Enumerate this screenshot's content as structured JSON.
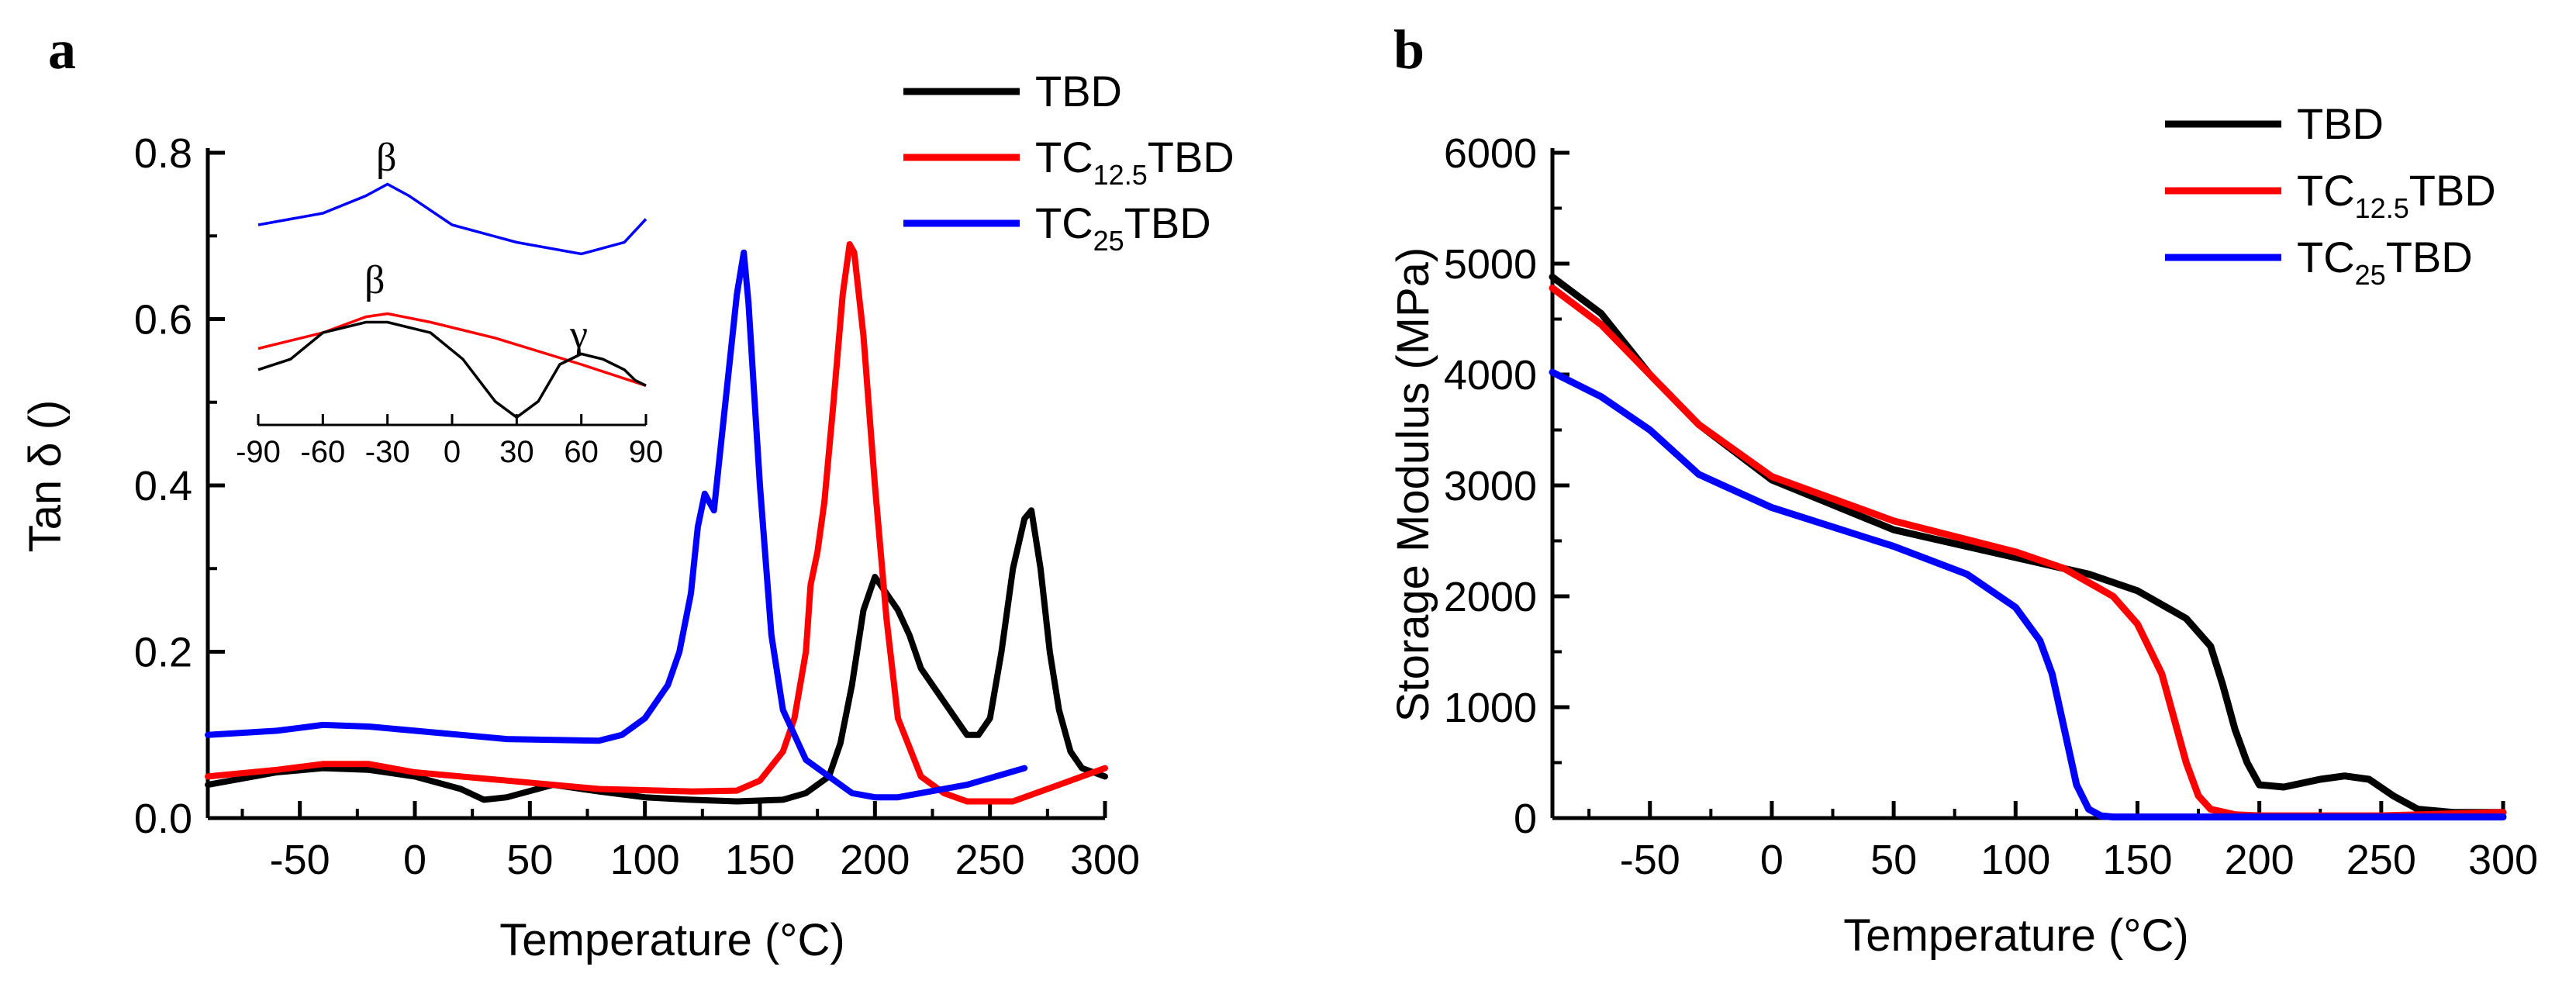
{
  "colors": {
    "TBD": "#000000",
    "TC12.5TBD": "#ff0000",
    "TC25TBD": "#0000ff"
  },
  "chart_data": [
    {
      "panel": "a",
      "type": "line",
      "xlabel": "Temperature (°C)",
      "ylabel": "Tan δ ()",
      "xlim": [
        -90,
        300
      ],
      "ylim": [
        0.0,
        0.8
      ],
      "xticks": [
        "-50",
        "0",
        "50",
        "100",
        "150",
        "200",
        "250",
        "300"
      ],
      "yticks": [
        "0.0",
        "0.2",
        "0.4",
        "0.6",
        "0.8"
      ],
      "legend": [
        {
          "main": "TBD",
          "sub": "",
          "tail": "",
          "color": "#000000"
        },
        {
          "main": "TC",
          "sub": "12.5",
          "tail": "TBD",
          "color": "#ff0000"
        },
        {
          "main": "TC",
          "sub": "25",
          "tail": "TBD",
          "color": "#0000ff"
        }
      ],
      "series": [
        {
          "name": "TBD",
          "color": "#000000",
          "x": [
            -90,
            -60,
            -40,
            -20,
            0,
            20,
            30,
            40,
            60,
            80,
            100,
            120,
            140,
            160,
            170,
            180,
            185,
            190,
            195,
            200,
            205,
            210,
            215,
            220,
            230,
            240,
            245,
            250,
            255,
            260,
            265,
            268,
            272,
            276,
            280,
            285,
            290,
            300
          ],
          "y": [
            0.04,
            0.055,
            0.06,
            0.058,
            0.05,
            0.035,
            0.022,
            0.025,
            0.04,
            0.032,
            0.025,
            0.022,
            0.02,
            0.022,
            0.03,
            0.05,
            0.09,
            0.16,
            0.25,
            0.29,
            0.27,
            0.25,
            0.22,
            0.18,
            0.14,
            0.1,
            0.1,
            0.12,
            0.2,
            0.3,
            0.36,
            0.37,
            0.3,
            0.2,
            0.13,
            0.08,
            0.06,
            0.05
          ]
        },
        {
          "name": "TC12.5TBD",
          "color": "#ff0000",
          "x": [
            -90,
            -60,
            -40,
            -20,
            0,
            40,
            80,
            120,
            140,
            150,
            160,
            165,
            170,
            172,
            175,
            178,
            182,
            186,
            189,
            191,
            195,
            200,
            205,
            210,
            220,
            230,
            240,
            250,
            260,
            280,
            300
          ],
          "y": [
            0.05,
            0.058,
            0.065,
            0.065,
            0.055,
            0.045,
            0.035,
            0.032,
            0.033,
            0.045,
            0.08,
            0.12,
            0.2,
            0.28,
            0.32,
            0.38,
            0.5,
            0.63,
            0.69,
            0.68,
            0.58,
            0.4,
            0.24,
            0.12,
            0.05,
            0.03,
            0.02,
            0.02,
            0.02,
            0.04,
            0.06
          ]
        },
        {
          "name": "TC25TBD",
          "color": "#0000ff",
          "x": [
            -90,
            -60,
            -40,
            -20,
            0,
            40,
            80,
            90,
            100,
            110,
            115,
            120,
            123,
            126,
            128,
            130,
            135,
            140,
            143,
            145,
            150,
            155,
            160,
            170,
            180,
            190,
            200,
            210,
            220,
            240,
            265
          ],
          "y": [
            0.1,
            0.105,
            0.112,
            0.11,
            0.105,
            0.095,
            0.093,
            0.1,
            0.12,
            0.16,
            0.2,
            0.27,
            0.35,
            0.39,
            0.38,
            0.37,
            0.5,
            0.63,
            0.68,
            0.62,
            0.4,
            0.22,
            0.13,
            0.07,
            0.05,
            0.03,
            0.025,
            0.025,
            0.03,
            0.04,
            0.06
          ]
        }
      ],
      "inset": {
        "xlim": [
          -90,
          90
        ],
        "xticks": [
          "-90",
          "-60",
          "-30",
          "0",
          "30",
          "60",
          "90"
        ],
        "annotations": [
          "β",
          "β",
          "γ"
        ],
        "upper_series": {
          "name": "TC25TBD",
          "color": "#0000ff",
          "x": [
            -90,
            -60,
            -40,
            -30,
            -20,
            0,
            30,
            60,
            80,
            90
          ],
          "y": [
            0.1,
            0.11,
            0.125,
            0.135,
            0.125,
            0.1,
            0.085,
            0.075,
            0.085,
            0.105
          ]
        },
        "lower_series": [
          {
            "name": "TC12.5TBD",
            "color": "#ff0000",
            "x": [
              -90,
              -60,
              -40,
              -30,
              -10,
              20,
              60,
              90
            ],
            "y": [
              0.07,
              0.085,
              0.1,
              0.103,
              0.095,
              0.08,
              0.055,
              0.035
            ]
          },
          {
            "name": "TBD",
            "color": "#000000",
            "x": [
              -90,
              -75,
              -60,
              -40,
              -30,
              -10,
              5,
              20,
              30,
              40,
              50,
              60,
              70,
              80,
              85,
              90
            ],
            "y": [
              0.05,
              0.06,
              0.085,
              0.095,
              0.095,
              0.085,
              0.06,
              0.02,
              0.005,
              0.02,
              0.055,
              0.065,
              0.06,
              0.05,
              0.04,
              0.035
            ]
          }
        ]
      }
    },
    {
      "panel": "b",
      "type": "line",
      "xlabel": "Temperature (°C)",
      "ylabel": "Storage Modulus (MPa)",
      "xlim": [
        -90,
        300
      ],
      "ylim": [
        0,
        6000
      ],
      "xticks": [
        "-50",
        "0",
        "50",
        "100",
        "150",
        "200",
        "250",
        "300"
      ],
      "yticks": [
        "0",
        "1000",
        "2000",
        "3000",
        "4000",
        "5000",
        "6000"
      ],
      "legend": [
        {
          "main": "TBD",
          "sub": "",
          "tail": "",
          "color": "#000000"
        },
        {
          "main": "TC",
          "sub": "12.5",
          "tail": "TBD",
          "color": "#ff0000"
        },
        {
          "main": "TC",
          "sub": "25",
          "tail": "TBD",
          "color": "#0000ff"
        }
      ],
      "series": [
        {
          "name": "TBD",
          "color": "#000000",
          "x": [
            -90,
            -70,
            -50,
            -30,
            0,
            50,
            100,
            130,
            150,
            170,
            180,
            185,
            190,
            195,
            200,
            210,
            225,
            235,
            245,
            255,
            265,
            280,
            300
          ],
          "y": [
            4880,
            4550,
            4000,
            3550,
            3050,
            2600,
            2350,
            2200,
            2050,
            1800,
            1550,
            1200,
            800,
            500,
            300,
            280,
            350,
            380,
            350,
            200,
            80,
            50,
            50
          ]
        },
        {
          "name": "TC12.5TBD",
          "color": "#ff0000",
          "x": [
            -90,
            -70,
            -50,
            -30,
            0,
            50,
            100,
            120,
            140,
            150,
            160,
            165,
            170,
            175,
            180,
            190,
            200,
            250,
            300
          ],
          "y": [
            4780,
            4450,
            4000,
            3550,
            3080,
            2680,
            2400,
            2250,
            2000,
            1750,
            1300,
            900,
            500,
            200,
            80,
            30,
            20,
            20,
            50
          ]
        },
        {
          "name": "TC25TBD",
          "color": "#0000ff",
          "x": [
            -90,
            -70,
            -50,
            -30,
            0,
            50,
            80,
            100,
            110,
            115,
            120,
            125,
            130,
            135,
            140,
            150,
            200,
            300
          ],
          "y": [
            4020,
            3800,
            3500,
            3100,
            2800,
            2450,
            2200,
            1900,
            1600,
            1300,
            800,
            300,
            80,
            20,
            10,
            10,
            10,
            10
          ]
        }
      ]
    }
  ]
}
